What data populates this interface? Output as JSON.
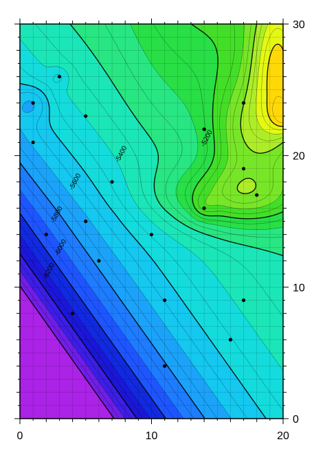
{
  "chart_data": {
    "type": "filled-contour",
    "title": "",
    "xlabel": "",
    "ylabel": "",
    "xlim": [
      0,
      20
    ],
    "ylim": [
      0,
      30
    ],
    "x_ticks": [
      {
        "value": 0,
        "label": "0"
      },
      {
        "value": 10,
        "label": "10"
      },
      {
        "value": 20,
        "label": "20"
      }
    ],
    "y_ticks": [
      {
        "value": 0,
        "label": "0"
      },
      {
        "value": 10,
        "label": "10"
      },
      {
        "value": 20,
        "label": "20"
      },
      {
        "value": 30,
        "label": "30"
      }
    ],
    "y_axis_side": "right",
    "grid": true,
    "grid_spacing": {
      "x": 1,
      "y": 1
    },
    "contour_interval": 50,
    "annotated_contour_interval": 200,
    "fill_interval": 100,
    "z_range": [
      -6750,
      -4950
    ],
    "contour_labels": [
      {
        "text": "-5200",
        "x": 14.2,
        "y": 21.3
      },
      {
        "text": "-5400",
        "x": 7.7,
        "y": 20.1
      },
      {
        "text": "-5600",
        "x": 4.2,
        "y": 18.0
      },
      {
        "text": "-5800",
        "x": 2.8,
        "y": 15.5
      },
      {
        "text": "-6000",
        "x": 3.1,
        "y": 13.0
      },
      {
        "text": "-6200",
        "x": 2.2,
        "y": 11.2
      }
    ],
    "data_points": [
      {
        "x": 1,
        "y": 24
      },
      {
        "x": 3,
        "y": 26
      },
      {
        "x": 5,
        "y": 23
      },
      {
        "x": 1,
        "y": 21
      },
      {
        "x": 7,
        "y": 18
      },
      {
        "x": 14,
        "y": 22
      },
      {
        "x": 17,
        "y": 24
      },
      {
        "x": 17,
        "y": 19
      },
      {
        "x": 18,
        "y": 17
      },
      {
        "x": 14,
        "y": 16
      },
      {
        "x": 5,
        "y": 15
      },
      {
        "x": 10,
        "y": 14
      },
      {
        "x": 2,
        "y": 14
      },
      {
        "x": 6,
        "y": 12
      },
      {
        "x": 11,
        "y": 9
      },
      {
        "x": 17,
        "y": 9
      },
      {
        "x": 4,
        "y": 8
      },
      {
        "x": 16,
        "y": 6
      },
      {
        "x": 11,
        "y": 4
      }
    ],
    "color_stops": [
      {
        "z": -6750,
        "color": "#e62ee6"
      },
      {
        "z": -6600,
        "color": "#8c1ee6"
      },
      {
        "z": -6450,
        "color": "#3c1ee6"
      },
      {
        "z": -6300,
        "color": "#0a14d2"
      },
      {
        "z": -6150,
        "color": "#1e55ff"
      },
      {
        "z": -6000,
        "color": "#1e90ff"
      },
      {
        "z": -5850,
        "color": "#14c8f0"
      },
      {
        "z": -5700,
        "color": "#14e6d2"
      },
      {
        "z": -5550,
        "color": "#28e682"
      },
      {
        "z": -5400,
        "color": "#28dc28"
      },
      {
        "z": -5250,
        "color": "#78e628"
      },
      {
        "z": -5100,
        "color": "#c8f028"
      },
      {
        "z": -5000,
        "color": "#ffff00"
      },
      {
        "z": -4850,
        "color": "#ff8c14"
      },
      {
        "z": -4750,
        "color": "#ff5014"
      }
    ]
  }
}
